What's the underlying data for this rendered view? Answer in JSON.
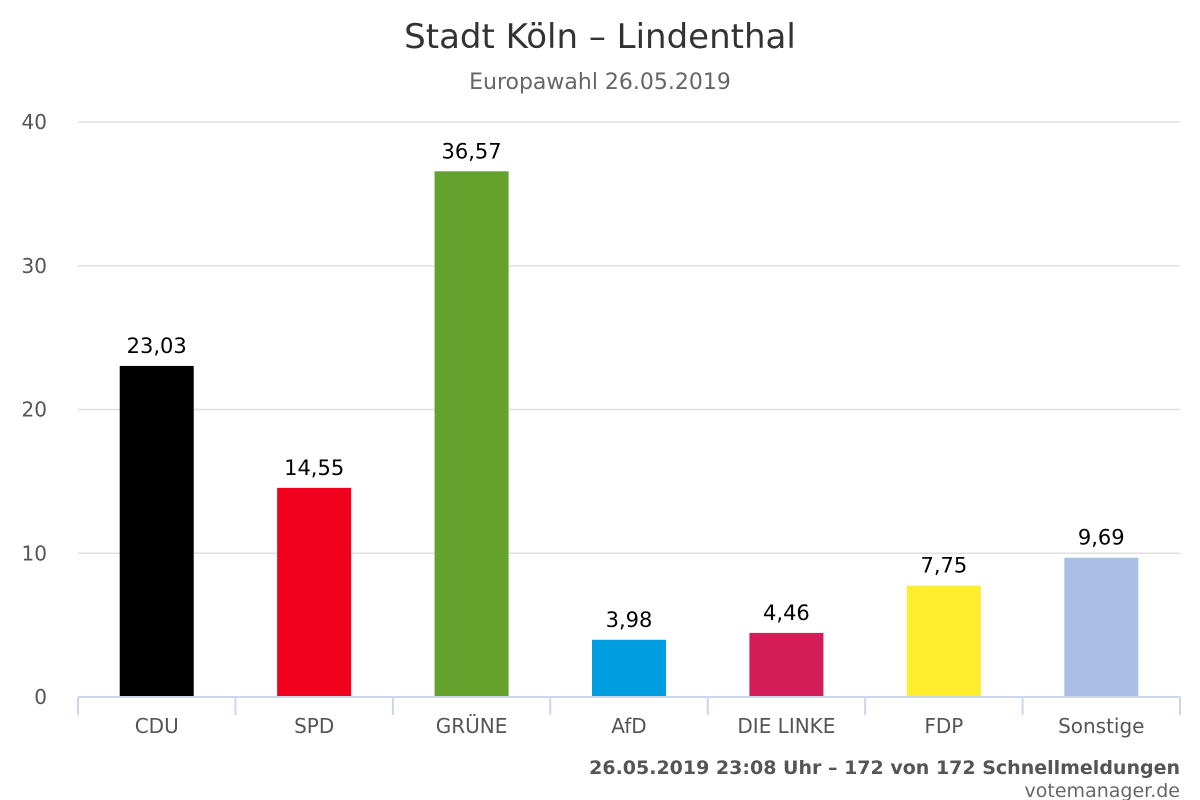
{
  "chart_data": {
    "type": "bar",
    "title": "Stadt Köln – Lindenthal",
    "subtitle": "Europawahl 26.05.2019",
    "categories": [
      "CDU",
      "SPD",
      "GRÜNE",
      "AfD",
      "DIE LINKE",
      "FDP",
      "Sonstige"
    ],
    "values": [
      23.03,
      14.55,
      36.57,
      3.98,
      4.46,
      7.75,
      9.69
    ],
    "value_labels": [
      "23,03",
      "14,55",
      "36,57",
      "3,98",
      "4,46",
      "7,75",
      "9,69"
    ],
    "colors": [
      "#000000",
      "#f0001c",
      "#64a12d",
      "#009ee0",
      "#d31c58",
      "#ffed2e",
      "#aabfe3"
    ],
    "ylim": [
      0,
      40
    ],
    "yticks": [
      0,
      10,
      20,
      30,
      40
    ],
    "grid": true,
    "legend": "none",
    "footer": "26.05.2019 23:08 Uhr – 172 von 172 Schnellmeldungen",
    "credit": "votemanager.de"
  }
}
